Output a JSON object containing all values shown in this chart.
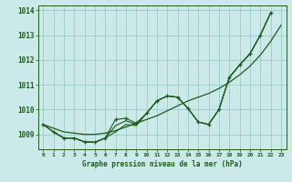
{
  "title": "Graphe pression niveau de la mer (hPa)",
  "bg_color": "#cce9e9",
  "grid_color": "#99cccc",
  "line_color": "#1a5c1a",
  "x_labels": [
    "0",
    "1",
    "2",
    "3",
    "4",
    "5",
    "6",
    "7",
    "8",
    "9",
    "10",
    "11",
    "12",
    "13",
    "14",
    "15",
    "16",
    "17",
    "18",
    "19",
    "20",
    "21",
    "22",
    "23"
  ],
  "ylim": [
    1008.4,
    1014.2
  ],
  "yticks": [
    1009,
    1010,
    1011,
    1012,
    1013,
    1014
  ],
  "marker_line": [
    1009.4,
    1009.1,
    1008.85,
    1008.85,
    1008.7,
    1008.68,
    1008.85,
    1009.6,
    1009.65,
    1009.45,
    1009.85,
    1010.35,
    1010.55,
    1010.5,
    1010.05,
    1009.5,
    1009.4,
    1010.0,
    1011.3,
    1011.8,
    1012.25,
    1013.0,
    1013.9,
    null
  ],
  "smooth_line": [
    1009.4,
    1009.25,
    1009.1,
    1009.05,
    1009.0,
    1009.0,
    1009.05,
    1009.15,
    1009.3,
    1009.45,
    1009.6,
    1009.75,
    1009.95,
    1010.15,
    1010.35,
    1010.5,
    1010.65,
    1010.85,
    1011.1,
    1011.4,
    1011.75,
    1012.2,
    1012.75,
    1013.4
  ],
  "line2": [
    1009.4,
    1009.1,
    1008.85,
    1008.85,
    1008.7,
    1008.68,
    1008.85,
    1009.1,
    1009.4,
    1009.35,
    1009.85,
    1010.35,
    1010.55,
    1010.5,
    1010.05,
    1009.5,
    1009.4,
    1010.0,
    1011.3,
    1011.8,
    1012.25,
    1013.0,
    1013.9,
    null
  ],
  "line3": [
    1009.4,
    1009.1,
    1008.85,
    1008.85,
    1008.7,
    1008.68,
    1008.85,
    1009.35,
    1009.55,
    1009.4,
    1009.85,
    1010.35,
    1010.55,
    1010.5,
    1010.05,
    1009.5,
    1009.4,
    1010.0,
    1011.3,
    1011.8,
    1012.25,
    1013.0,
    1013.9,
    null
  ]
}
